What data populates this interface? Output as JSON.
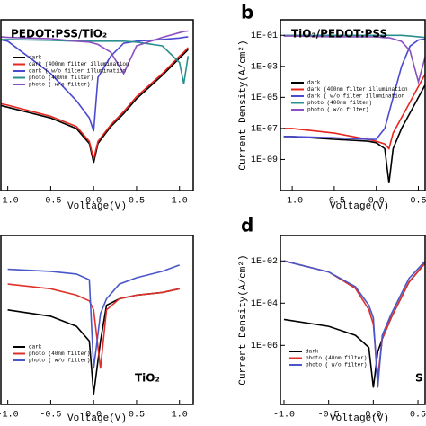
{
  "chart_data": [
    {
      "type": "line",
      "title": "PEDOT:PSS/TiO₂",
      "xlabel": "Voltage(V)",
      "log_y": true,
      "x": [
        -1.1,
        -1.0,
        -0.5,
        -0.2,
        -0.05,
        0,
        0.05,
        0.2,
        0.35,
        0.5,
        0.8,
        1.0,
        1.05,
        1.1
      ],
      "xlim": [
        -1.08,
        1.16
      ],
      "ylim": [
        1e-09,
        0.1
      ],
      "xticks": [
        {
          "value": -1,
          "label": "-1.0"
        },
        -0.5,
        {
          "value": 0,
          "label": "0.0"
        },
        0.5,
        {
          "value": 1,
          "label": "1.0"
        }
      ],
      "series": [
        {
          "name": "dark",
          "color": "#000000",
          "values": [
            1e-05,
            8e-06,
            2.5e-06,
            8e-07,
            1.6e-07,
            2e-08,
            1.6e-07,
            1e-06,
            4e-06,
            2e-05,
            0.00025,
            0.0016,
            0.0025,
            0.004
          ]
        },
        {
          "name": "dark (400nm filter illumination",
          "color": "#e8251f",
          "values": [
            1.2e-05,
            1e-05,
            3e-06,
            1e-06,
            2e-07,
            3e-08,
            2e-07,
            1.2e-06,
            5e-06,
            2.5e-05,
            0.0003,
            0.002,
            0.003,
            0.005
          ]
        },
        {
          "name": "dark ( w/o filter illumination",
          "color": "#4a4ad0",
          "values": [
            0.012,
            0.01,
            0.0003,
            1.6e-05,
            2.5e-06,
            6e-07,
            0.0002,
            0.002,
            0.008,
            0.01,
            0.012,
            0.014,
            0.015,
            0.016
          ]
        },
        {
          "name": "photo (400nm filter)",
          "color": "#2a8f8f",
          "values": [
            0.012,
            0.012,
            0.011,
            0.01,
            0.01,
            0.01,
            0.01,
            0.01,
            0.01,
            0.009,
            0.006,
            0.001,
            0.0001,
            0.002
          ]
        },
        {
          "name": "photo ( w/o filter)",
          "color": "#8a4fc0",
          "values": [
            0.016,
            0.015,
            0.013,
            0.01,
            0.009,
            0.008,
            0.007,
            0.003,
            0.0003,
            0.006,
            0.015,
            0.025,
            0.028,
            0.03
          ]
        }
      ]
    },
    {
      "type": "line",
      "panel_label": "b",
      "title": "TiO₂/PEDOT:PSS",
      "xlabel": "Voltage(V)",
      "ylabel": "Current Density(A/cm²)",
      "log_y": true,
      "x": [
        -1.1,
        -1.0,
        -0.5,
        -0.1,
        0,
        0.1,
        0.15,
        0.2,
        0.3,
        0.4,
        0.5,
        0.6
      ],
      "xlim": [
        -1.14,
        0.58
      ],
      "ylim": [
        1e-11,
        1
      ],
      "xticks": [
        {
          "value": -1,
          "label": "-1.0"
        },
        -0.5,
        {
          "value": 0,
          "label": "0.0"
        },
        0.5
      ],
      "yticks": [
        {
          "value": 0.1,
          "label": "1E-01"
        },
        {
          "value": 0.001,
          "label": "1E-03"
        },
        {
          "value": 1e-05,
          "label": "1E-05"
        },
        {
          "value": 1e-07,
          "label": "1E-07"
        },
        {
          "value": 1e-09,
          "label": "1E-09"
        }
      ],
      "series": [
        {
          "name": "dark",
          "color": "#000000",
          "values": [
            3e-08,
            3e-08,
            2e-08,
            1.5e-08,
            1.2e-08,
            5e-09,
            3e-11,
            5e-09,
            1e-07,
            1e-06,
            1e-05,
            0.0001
          ]
        },
        {
          "name": "dark (400nm filter illumination",
          "color": "#e8251f",
          "values": [
            1e-07,
            1e-07,
            5e-08,
            2e-08,
            1.5e-08,
            1e-08,
            5e-09,
            5e-08,
            5e-07,
            5e-06,
            5e-05,
            0.0005
          ]
        },
        {
          "name": "dark ( w/o filter illumination",
          "color": "#4a4ad0",
          "values": [
            3e-08,
            3e-08,
            2.5e-08,
            2e-08,
            2e-08,
            1e-07,
            1e-06,
            1e-05,
            0.001,
            0.02,
            0.05,
            0.06
          ]
        },
        {
          "name": "photo (400nm filter)",
          "color": "#2a8f8f",
          "values": [
            0.1,
            0.1,
            0.1,
            0.1,
            0.1,
            0.1,
            0.1,
            0.1,
            0.1,
            0.09,
            0.08,
            0.07
          ]
        },
        {
          "name": "photo ( w/o filter)",
          "color": "#8a4fc0",
          "values": [
            0.09,
            0.09,
            0.08,
            0.08,
            0.08,
            0.07,
            0.07,
            0.06,
            0.04,
            0.01,
            0.0001,
            0.01
          ]
        }
      ]
    },
    {
      "type": "line",
      "annotation": "TiO₂",
      "xlabel": "Voltage(V)",
      "log_y": true,
      "x": [
        -1.0,
        -0.5,
        -0.2,
        -0.05,
        0,
        0.08,
        0.15,
        0.3,
        0.5,
        0.8,
        1.0
      ],
      "xlim": [
        -1.08,
        1.16
      ],
      "ylim": [
        1e-09,
        0.1
      ],
      "xticks": [
        {
          "value": -1,
          "label": "-1.0"
        },
        -0.5,
        {
          "value": 0,
          "label": "0.0"
        },
        0.5,
        {
          "value": 1,
          "label": "1.0"
        }
      ],
      "series": [
        {
          "name": "dark",
          "color": "#000000",
          "values": [
            3e-05,
            1.5e-05,
            5e-06,
            1e-06,
            3e-09,
            1e-06,
            5e-05,
            0.0001,
            0.00015,
            0.0002,
            0.0003
          ]
        },
        {
          "name": "photo (40nm filter)",
          "color": "#e0302a",
          "values": [
            0.0005,
            0.0003,
            0.00015,
            8e-05,
            3e-05,
            5e-08,
            3e-05,
            0.0001,
            0.00015,
            0.0002,
            0.0003
          ]
        },
        {
          "name": "photo ( w/o filter)",
          "color": "#4a57c8",
          "values": [
            0.0025,
            0.002,
            0.0015,
            0.0008,
            5e-08,
            2e-05,
            0.0001,
            0.0005,
            0.001,
            0.002,
            0.004
          ]
        }
      ]
    },
    {
      "type": "line",
      "panel_label": "d",
      "annotation": "S",
      "xlabel": "Voltage(V)",
      "ylabel": "Current Density(A/cm²)",
      "log_y": true,
      "x": [
        -1.0,
        -0.5,
        -0.2,
        -0.05,
        0,
        0.05,
        0.1,
        0.2,
        0.4,
        0.6
      ],
      "xlim": [
        -1.04,
        0.58
      ],
      "ylim": [
        1.6e-09,
        0.16
      ],
      "xticks": [
        {
          "value": -1,
          "label": "-1.0"
        },
        -0.5,
        {
          "value": 0,
          "label": "0.0"
        },
        0.5
      ],
      "yticks": [
        {
          "value": 0.01,
          "label": "1E-02"
        },
        {
          "value": 0.0001,
          "label": "1E-04"
        },
        {
          "value": 1e-06,
          "label": "1E-06"
        }
      ],
      "series": [
        {
          "name": "dark",
          "color": "#000000",
          "values": [
            1.7e-05,
            8e-06,
            3e-06,
            8e-07,
            1e-08,
            5e-07,
            2e-06,
            2e-05,
            0.001,
            0.01
          ]
        },
        {
          "name": "photo (40nm filter)",
          "color": "#e0302a",
          "values": [
            0.01,
            0.003,
            0.0005,
            5e-05,
            1e-05,
            3e-08,
            2e-06,
            2e-05,
            0.001,
            0.01
          ]
        },
        {
          "name": "photo ( w/o filter)",
          "color": "#4a57c8",
          "values": [
            0.01,
            0.003,
            0.0006,
            8e-05,
            2e-05,
            1e-08,
            3e-06,
            3e-05,
            0.0015,
            0.012
          ]
        }
      ]
    }
  ]
}
